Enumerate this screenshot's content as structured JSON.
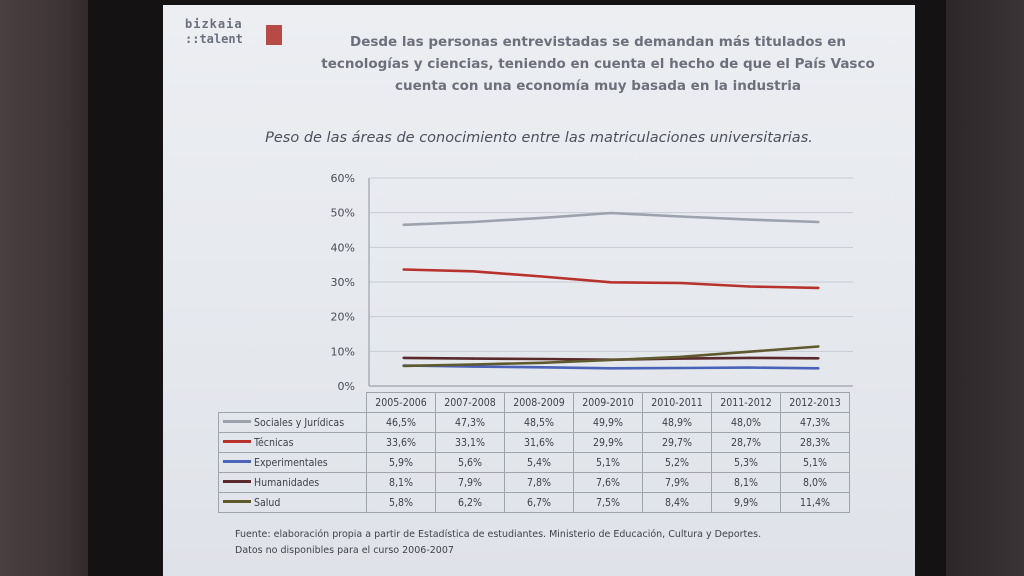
{
  "logo": {
    "line1": "bizkaia",
    "line2": "::talent"
  },
  "headline": {
    "line1": "Desde las personas entrevistadas se demandan más titulados en",
    "line2": "tecnologías y ciencias, teniendo en cuenta el hecho de que el País Vasco",
    "line3": "cuenta con una economía muy basada en la industria"
  },
  "subtitle": "Peso de las áreas de conocimiento entre las matriculaciones universitarias.",
  "chart_data": {
    "type": "line",
    "title": "Peso de las áreas de conocimiento entre las matriculaciones universitarias.",
    "categories": [
      "2005-2006",
      "2007-2008",
      "2008-2009",
      "2009-2010",
      "2010-2011",
      "2011-2012",
      "2012-2013"
    ],
    "yticks": [
      "0%",
      "10%",
      "20%",
      "30%",
      "40%",
      "50%",
      "60%"
    ],
    "ylim": [
      0,
      60
    ],
    "grid": true,
    "series": [
      {
        "name": "Sociales y Jurídicas",
        "color": "#9da2ac",
        "values": [
          46.5,
          47.3,
          48.5,
          49.9,
          48.9,
          48.0,
          47.3
        ],
        "labels": [
          "46,5%",
          "47,3%",
          "48,5%",
          "49,9%",
          "48,9%",
          "48,0%",
          "47,3%"
        ]
      },
      {
        "name": "Técnicas",
        "color": "#b8322d",
        "values": [
          33.6,
          33.1,
          31.6,
          29.9,
          29.7,
          28.7,
          28.3
        ],
        "labels": [
          "33,6%",
          "33,1%",
          "31,6%",
          "29,9%",
          "29,7%",
          "28,7%",
          "28,3%"
        ]
      },
      {
        "name": "Experimentales",
        "color": "#4a62b8",
        "values": [
          5.9,
          5.6,
          5.4,
          5.1,
          5.2,
          5.3,
          5.1
        ],
        "labels": [
          "5,9%",
          "5,6%",
          "5,4%",
          "5,1%",
          "5,2%",
          "5,3%",
          "5,1%"
        ]
      },
      {
        "name": "Humanidades",
        "color": "#5a2a2c",
        "values": [
          8.1,
          7.9,
          7.8,
          7.6,
          7.9,
          8.1,
          8.0
        ],
        "labels": [
          "8,1%",
          "7,9%",
          "7,8%",
          "7,6%",
          "7,9%",
          "8,1%",
          "8,0%"
        ]
      },
      {
        "name": "Salud",
        "color": "#5e5a2e",
        "values": [
          5.8,
          6.2,
          6.7,
          7.5,
          8.4,
          9.9,
          11.4
        ],
        "labels": [
          "5,8%",
          "6,2%",
          "6,7%",
          "7,5%",
          "8,4%",
          "9,9%",
          "11,4%"
        ]
      }
    ]
  },
  "footnote": {
    "line1": "Fuente: elaboración propia a partir de Estadística de estudiantes. Ministerio de Educación, Cultura y Deportes.",
    "line2": "Datos no disponibles para el curso 2006-2007"
  }
}
